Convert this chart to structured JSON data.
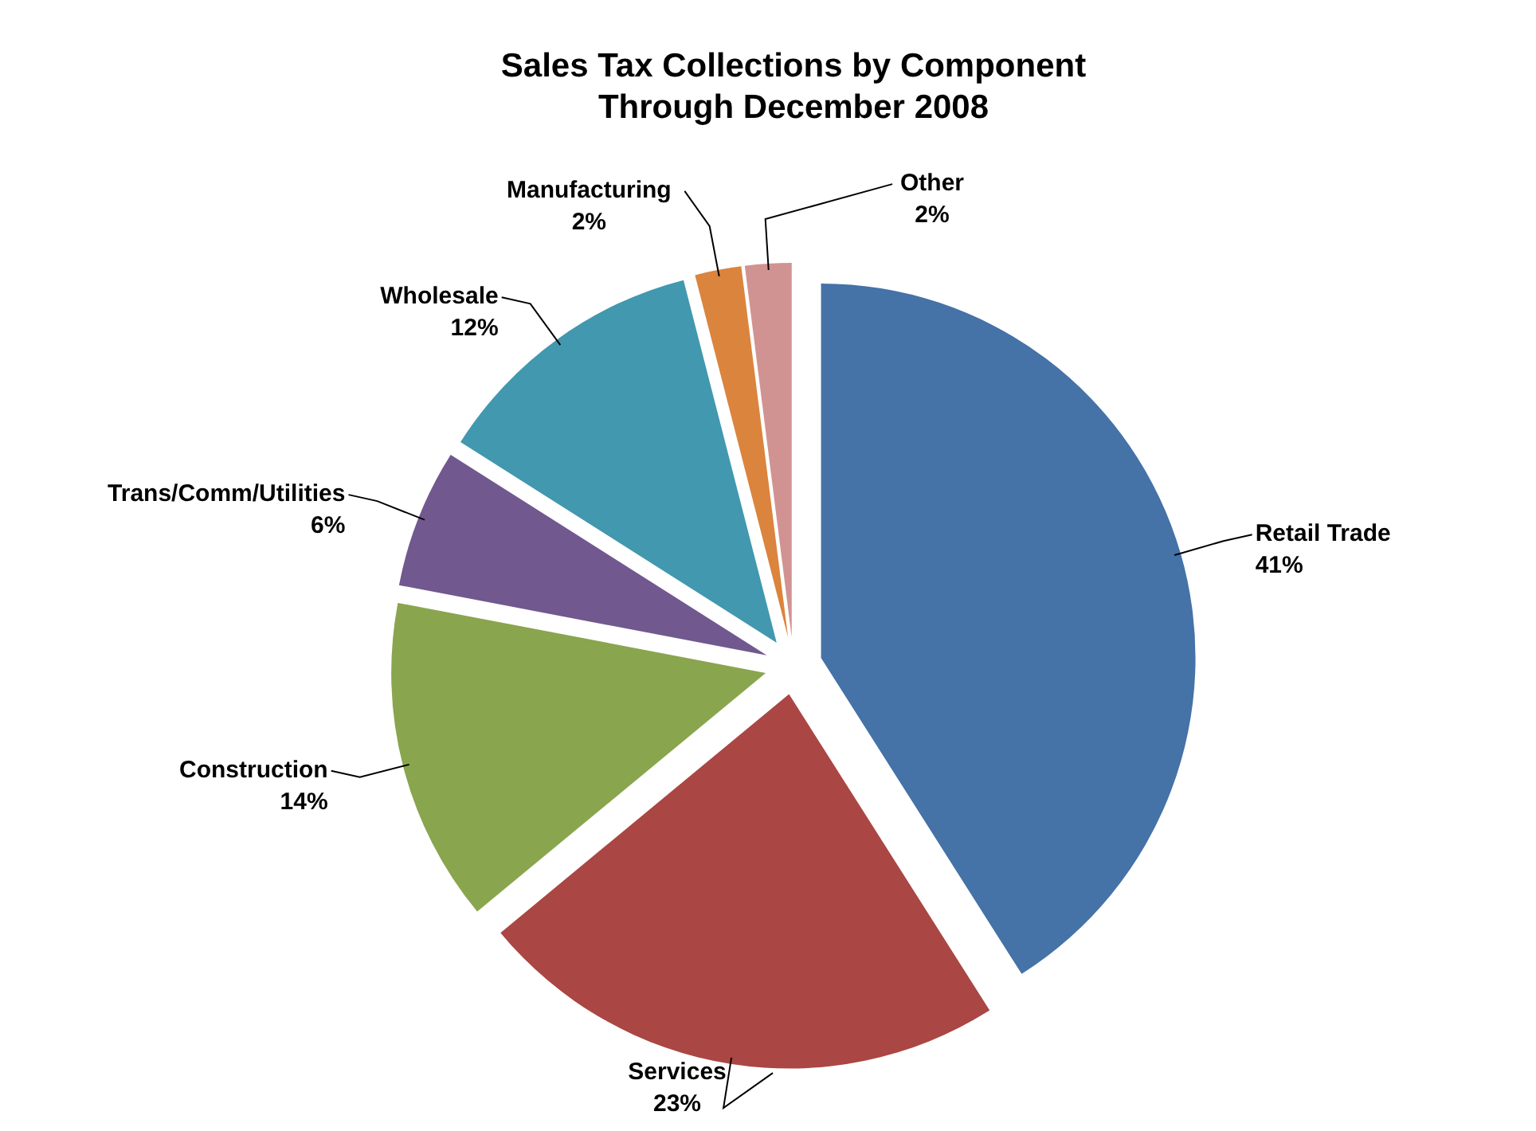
{
  "chart_data": {
    "type": "pie",
    "title": "Sales Tax Collections by Component\nThrough December 2008",
    "categories": [
      "Retail Trade",
      "Services",
      "Construction",
      "Trans/Comm/Utilities",
      "Wholesale",
      "Manufacturing",
      "Other"
    ],
    "values": [
      41,
      23,
      14,
      6,
      12,
      2,
      2
    ],
    "value_labels": [
      "41%",
      "23%",
      "14%",
      "6%",
      "12%",
      "2%",
      "2%"
    ],
    "colors": [
      "#4572a7",
      "#aa4643",
      "#89a54e",
      "#71588f",
      "#4198af",
      "#db843d",
      "#d19392"
    ],
    "legend": false
  }
}
